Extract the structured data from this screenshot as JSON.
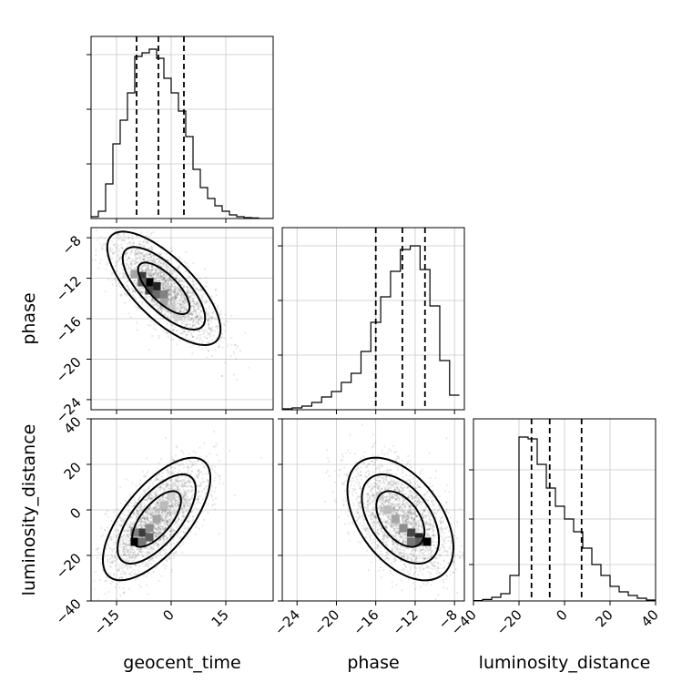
{
  "chart_data": {
    "type": "corner",
    "parameters": [
      "geocent_time",
      "phase",
      "luminosity_distance"
    ],
    "grid": true,
    "panels": [
      {
        "type": "histogram",
        "row": 0,
        "col": 0,
        "x_param": "geocent_time",
        "xlim": [
          -22,
          28
        ],
        "ylim": [
          0,
          1.0
        ],
        "bin_edges": [
          -22,
          -20,
          -18,
          -16,
          -14,
          -12,
          -10,
          -8,
          -6,
          -4,
          -2,
          0,
          2,
          4,
          6,
          8,
          10,
          12,
          14,
          16,
          18,
          20,
          22,
          24,
          26,
          28
        ],
        "counts": [
          0.01,
          0.04,
          0.19,
          0.41,
          0.54,
          0.69,
          0.89,
          0.91,
          0.93,
          0.88,
          0.77,
          0.69,
          0.59,
          0.45,
          0.27,
          0.17,
          0.11,
          0.07,
          0.04,
          0.02,
          0.01,
          0.005,
          0.003,
          0,
          0
        ],
        "quantiles": [
          -9.5,
          -3.5,
          3.5
        ],
        "y_tick_values": [
          0.3,
          0.6,
          0.9
        ]
      },
      {
        "type": "histogram",
        "row": 1,
        "col": 1,
        "x_param": "phase",
        "xlim": [
          -25.5,
          -7.0
        ],
        "ylim": [
          0,
          1.0
        ],
        "bin_edges": [
          -25.5,
          -24.5,
          -23.5,
          -22.5,
          -21.5,
          -20.5,
          -19.5,
          -18.5,
          -17.5,
          -16.5,
          -15.5,
          -14.5,
          -13.5,
          -12.5,
          -11.5,
          -10.5,
          -9.5,
          -8.5,
          -7.5
        ],
        "counts": [
          0.005,
          0.01,
          0.02,
          0.04,
          0.07,
          0.1,
          0.15,
          0.2,
          0.32,
          0.48,
          0.62,
          0.76,
          0.88,
          0.9,
          0.77,
          0.57,
          0.27,
          0.08
        ],
        "quantiles": [
          -16.0,
          -13.3,
          -11.0
        ],
        "y_tick_values": [
          0.3,
          0.6,
          0.9
        ]
      },
      {
        "type": "histogram",
        "row": 2,
        "col": 2,
        "x_param": "luminosity_distance",
        "xlim": [
          -40,
          40
        ],
        "ylim": [
          0,
          1.0
        ],
        "bin_edges": [
          -40,
          -36,
          -32,
          -28,
          -24,
          -20,
          -16,
          -12,
          -8,
          -4,
          0,
          4,
          8,
          12,
          16,
          20,
          24,
          28,
          32,
          36,
          40
        ],
        "counts": [
          0.002,
          0.008,
          0.02,
          0.04,
          0.14,
          0.9,
          0.89,
          0.75,
          0.62,
          0.52,
          0.45,
          0.38,
          0.29,
          0.2,
          0.14,
          0.08,
          0.05,
          0.03,
          0.015,
          0.005
        ],
        "quantiles": [
          -14.5,
          -6.5,
          7.5
        ],
        "y_tick_values": [
          0.2,
          0.45,
          0.72
        ]
      },
      {
        "type": "scatter-contour",
        "row": 1,
        "col": 0,
        "x_param": "geocent_time",
        "y_param": "phase",
        "xlim": [
          -22,
          28
        ],
        "ylim": [
          -25.0,
          -7.0
        ],
        "mean": [
          -2,
          -13
        ],
        "cov": [
          [
            50,
            -13
          ],
          [
            -13,
            6.5
          ]
        ],
        "density_cells": [
          {
            "x": -6,
            "y": -12.4,
            "v": 1.0
          },
          {
            "x": -4,
            "y": -12.8,
            "v": 0.85
          },
          {
            "x": -8,
            "y": -11.8,
            "v": 0.75
          },
          {
            "x": -8,
            "y": -12.4,
            "v": 0.6
          },
          {
            "x": -6,
            "y": -13.2,
            "v": 0.7
          },
          {
            "x": -4,
            "y": -13.6,
            "v": 0.55
          },
          {
            "x": -2,
            "y": -13.6,
            "v": 0.45
          },
          {
            "x": -2,
            "y": -14.4,
            "v": 0.3
          },
          {
            "x": -10,
            "y": -11.6,
            "v": 0.3
          },
          {
            "x": 0,
            "y": -15.0,
            "v": 0.15
          },
          {
            "x": 2,
            "y": -15.8,
            "v": 0.1
          }
        ],
        "contour_levels": [
          1.0,
          1.6,
          2.2
        ]
      },
      {
        "type": "scatter-contour",
        "row": 2,
        "col": 0,
        "x_param": "geocent_time",
        "y_param": "luminosity_distance",
        "xlim": [
          -22,
          28
        ],
        "ylim": [
          -40,
          40
        ],
        "mean": [
          -4,
          -4
        ],
        "cov": [
          [
            45,
            55
          ],
          [
            55,
            150
          ]
        ],
        "density_cells": [
          {
            "x": -10,
            "y": -14,
            "v": 1.0
          },
          {
            "x": -8,
            "y": -10,
            "v": 0.75
          },
          {
            "x": -6,
            "y": -12,
            "v": 0.6
          },
          {
            "x": -8,
            "y": -14,
            "v": 0.5
          },
          {
            "x": -10,
            "y": -10,
            "v": 0.45
          },
          {
            "x": -6,
            "y": -8,
            "v": 0.4
          },
          {
            "x": -4,
            "y": -4,
            "v": 0.3
          },
          {
            "x": -2,
            "y": 2,
            "v": 0.2
          },
          {
            "x": 0,
            "y": 6,
            "v": 0.12
          }
        ],
        "contour_levels": [
          1.0,
          1.6,
          2.2
        ]
      },
      {
        "type": "scatter-contour",
        "row": 2,
        "col": 1,
        "x_param": "phase",
        "y_param": "luminosity_distance",
        "xlim": [
          -25.5,
          -7.0
        ],
        "ylim": [
          -40,
          40
        ],
        "mean": [
          -13.5,
          -4
        ],
        "cov": [
          [
            6.0,
            -14
          ],
          [
            -14,
            150
          ]
        ],
        "density_cells": [
          {
            "x": -10.8,
            "y": -14,
            "v": 1.0
          },
          {
            "x": -11.6,
            "y": -12,
            "v": 0.85
          },
          {
            "x": -12.4,
            "y": -10,
            "v": 0.7
          },
          {
            "x": -11.6,
            "y": -14,
            "v": 0.6
          },
          {
            "x": -12.4,
            "y": -14,
            "v": 0.5
          },
          {
            "x": -13.2,
            "y": -8,
            "v": 0.4
          },
          {
            "x": -14.0,
            "y": -4,
            "v": 0.3
          },
          {
            "x": -14.8,
            "y": 0,
            "v": 0.2
          },
          {
            "x": -15.6,
            "y": 6,
            "v": 0.12
          }
        ],
        "contour_levels": [
          1.0,
          1.6,
          2.2
        ]
      }
    ],
    "axes": {
      "geocent_time": {
        "ticks": [
          -15,
          0,
          15
        ],
        "tick_labels": [
          "−15",
          "0",
          "15"
        ]
      },
      "phase": {
        "ticks": [
          -24,
          -20,
          -16,
          -12,
          -8
        ],
        "tick_labels": [
          "−24",
          "−20",
          "−16",
          "−12",
          "−8"
        ]
      },
      "luminosity_distance": {
        "ticks": [
          -40,
          -20,
          0,
          20,
          40
        ],
        "tick_labels": [
          "−40",
          "−20",
          "0",
          "20",
          "40"
        ]
      }
    },
    "xlabels": [
      "geocent_time",
      "phase",
      "luminosity_distance"
    ],
    "ylabels": [
      "phase",
      "luminosity_distance"
    ]
  }
}
